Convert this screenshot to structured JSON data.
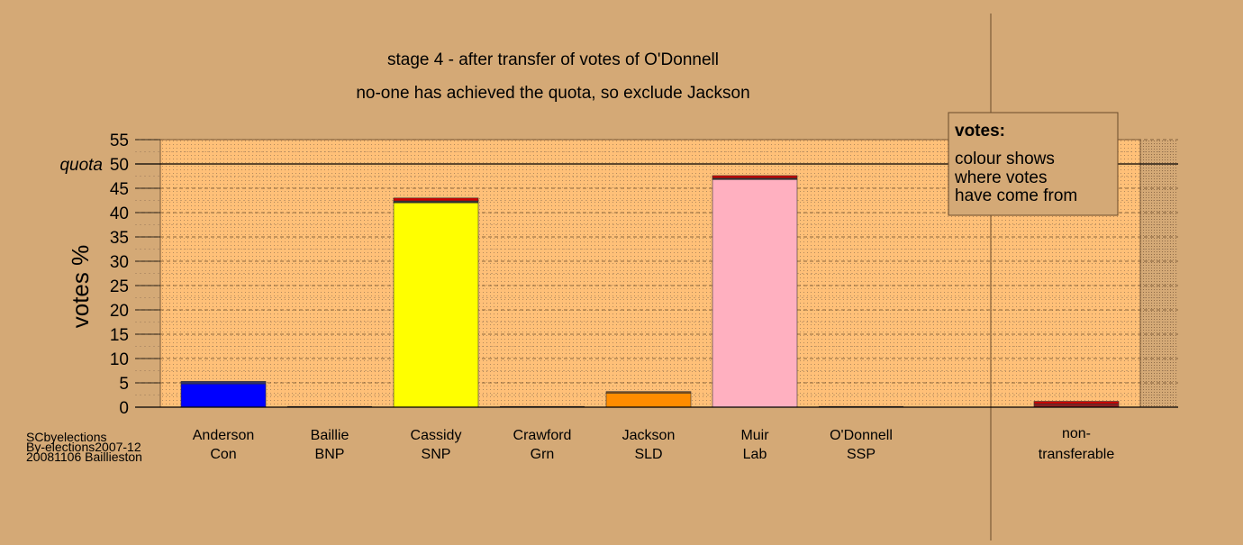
{
  "chart_data": {
    "type": "bar",
    "title": "stage 4 - after transfer of votes of O'Donnell",
    "subtitle": "no-one has achieved the quota, so exclude Jackson",
    "ylabel": "votes %",
    "ylim": [
      0,
      55
    ],
    "yticks": [
      0,
      5,
      10,
      15,
      20,
      25,
      30,
      35,
      40,
      45,
      50,
      55
    ],
    "quota": {
      "label": "quota",
      "value": 50
    },
    "grid": true,
    "legend": {
      "placement": "top-right",
      "title": "votes:",
      "lines": [
        "colour shows",
        "where votes",
        "have come from"
      ]
    },
    "candidates": [
      {
        "name": "Anderson",
        "party": "Con",
        "total": 5.3,
        "segments": [
          {
            "value": 4.8,
            "color": "#0000ff"
          },
          {
            "value": 0.5,
            "color": "#333366"
          }
        ]
      },
      {
        "name": "Baillie",
        "party": "BNP",
        "total": 0,
        "segments": []
      },
      {
        "name": "Cassidy",
        "party": "SNP",
        "total": 43.0,
        "segments": [
          {
            "value": 42.0,
            "color": "#ffff00"
          },
          {
            "value": 0.4,
            "color": "#333333"
          },
          {
            "value": 0.6,
            "color": "#cc0000"
          }
        ]
      },
      {
        "name": "Crawford",
        "party": "Grn",
        "total": 0,
        "segments": []
      },
      {
        "name": "Jackson",
        "party": "SLD",
        "total": 3.2,
        "segments": [
          {
            "value": 2.9,
            "color": "#ff8c00"
          },
          {
            "value": 0.3,
            "color": "#7a4a1a"
          }
        ]
      },
      {
        "name": "Muir",
        "party": "Lab",
        "total": 47.6,
        "segments": [
          {
            "value": 46.8,
            "color": "#ffb0c0"
          },
          {
            "value": 0.3,
            "color": "#333333"
          },
          {
            "value": 0.5,
            "color": "#cc0000"
          }
        ]
      },
      {
        "name": "O'Donnell",
        "party": "SSP",
        "total": 0,
        "segments": []
      }
    ],
    "nontransferable": {
      "line1": "non-",
      "line2": "transferable",
      "total": 1.2,
      "segments": [
        {
          "value": 0.7,
          "color": "#8b2020"
        },
        {
          "value": 0.5,
          "color": "#cc0000"
        }
      ]
    }
  },
  "footer": {
    "line1": "SCbyelections",
    "line2": "By-elections2007-12",
    "line3": "20081106 Baillieston"
  },
  "colors": {
    "background": "#d4a976",
    "plot_background": "#ffc078",
    "nontransferable_background": "#d4a976"
  }
}
